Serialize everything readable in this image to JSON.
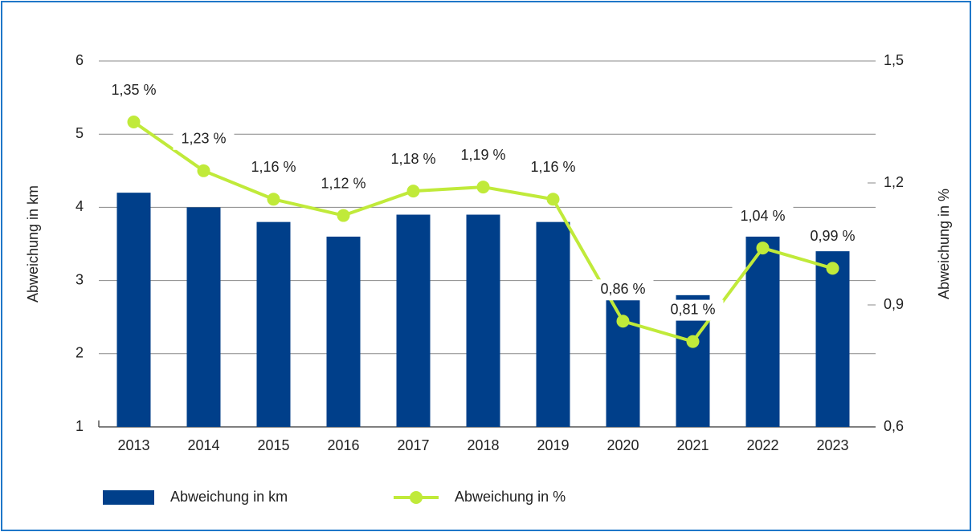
{
  "chart_data": {
    "type": "bar-line",
    "categories": [
      "2013",
      "2014",
      "2015",
      "2016",
      "2017",
      "2018",
      "2019",
      "2020",
      "2021",
      "2022",
      "2023"
    ],
    "series": [
      {
        "name": "Abweichung in km",
        "type": "bar",
        "color": "#003f8a",
        "axis": "y",
        "values": [
          4.2,
          4.0,
          3.8,
          3.6,
          3.9,
          3.9,
          3.8,
          2.9,
          2.8,
          3.6,
          3.4
        ]
      },
      {
        "name": "Abweichung in %",
        "type": "line",
        "color": "#c0ea3a",
        "axis": "y2",
        "values": [
          1.35,
          1.23,
          1.16,
          1.12,
          1.18,
          1.19,
          1.16,
          0.86,
          0.81,
          1.04,
          0.99
        ],
        "value_labels": [
          "1,35 %",
          "1,23 %",
          "1,16 %",
          "1,12 %",
          "1,18 %",
          "1,19 %",
          "1,16 %",
          "0,86 %",
          "0,81 %",
          "1,04 %",
          "0,99 %"
        ]
      }
    ],
    "ylabel": "Abweichung in km",
    "y2label": "Abweichung in %",
    "ylim": [
      1,
      6
    ],
    "yticks": [
      1,
      2,
      3,
      4,
      5,
      6
    ],
    "y2lim": [
      0.6,
      1.5
    ],
    "y2ticks": [
      {
        "value": 0.6,
        "label": "0,6"
      },
      {
        "value": 0.9,
        "label": "0,9"
      },
      {
        "value": 1.2,
        "label": "1,2"
      },
      {
        "value": 1.5,
        "label": "1,5"
      }
    ],
    "grid": true,
    "legend": "bottom"
  }
}
